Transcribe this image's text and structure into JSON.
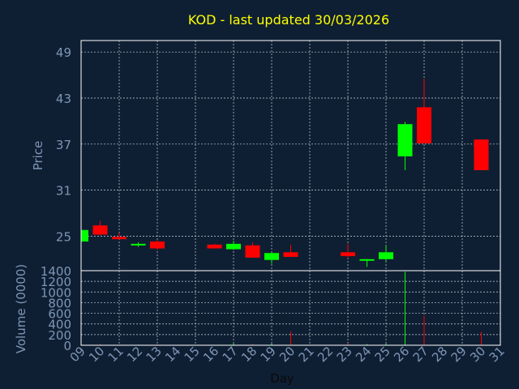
{
  "chart_data": {
    "type": "candlestick",
    "title": "KOD - last updated 30/03/2026",
    "xlabel": "Day",
    "price_panel": {
      "ylabel": "Price",
      "yticks": [
        25,
        31,
        37,
        43,
        49
      ],
      "ylim": [
        20.5,
        50.5
      ]
    },
    "volume_panel": {
      "ylabel": "Volume (0000)",
      "yticks": [
        0,
        200,
        400,
        600,
        800,
        1000,
        1200,
        1400
      ],
      "ylim": [
        0,
        1400
      ]
    },
    "x_ticks": [
      "09",
      "10",
      "11",
      "12",
      "13",
      "14",
      "15",
      "16",
      "17",
      "18",
      "19",
      "20",
      "21",
      "22",
      "23",
      "24",
      "25",
      "26",
      "27",
      "28",
      "29",
      "30",
      "31"
    ],
    "colors": {
      "up": "#00ff00",
      "down": "#ff0000"
    },
    "candles": [
      {
        "day": 9,
        "open": 24.3,
        "high": 25.9,
        "low": 24.1,
        "close": 25.8,
        "volume": 15
      },
      {
        "day": 10,
        "open": 26.4,
        "high": 27.0,
        "low": 25.1,
        "close": 25.2,
        "volume": 20
      },
      {
        "day": 11,
        "open": 24.9,
        "high": 25.4,
        "low": 24.6,
        "close": 24.6,
        "volume": 12
      },
      {
        "day": 12,
        "open": 23.9,
        "high": 24.2,
        "low": 23.6,
        "close": 24.0,
        "volume": 10
      },
      {
        "day": 13,
        "open": 24.3,
        "high": 24.5,
        "low": 23.2,
        "close": 23.4,
        "volume": 14
      },
      {
        "day": 16,
        "open": 23.9,
        "high": 24.0,
        "low": 23.4,
        "close": 23.4,
        "volume": 8
      },
      {
        "day": 17,
        "open": 23.3,
        "high": 24.4,
        "low": 23.2,
        "close": 24.0,
        "volume": 40
      },
      {
        "day": 18,
        "open": 23.8,
        "high": 24.2,
        "low": 22.2,
        "close": 22.2,
        "volume": 25
      },
      {
        "day": 19,
        "open": 21.9,
        "high": 22.9,
        "low": 21.4,
        "close": 22.8,
        "volume": 30
      },
      {
        "day": 20,
        "open": 22.9,
        "high": 23.9,
        "low": 22.3,
        "close": 22.3,
        "volume": 260
      },
      {
        "day": 23,
        "open": 22.9,
        "high": 24.0,
        "low": 22.1,
        "close": 22.4,
        "volume": 35
      },
      {
        "day": 24,
        "open": 21.9,
        "high": 22.0,
        "low": 21.0,
        "close": 22.0,
        "volume": 20
      },
      {
        "day": 25,
        "open": 22.0,
        "high": 23.8,
        "low": 21.7,
        "close": 22.9,
        "volume": 30
      },
      {
        "day": 26,
        "open": 35.4,
        "high": 39.9,
        "low": 33.6,
        "close": 39.6,
        "volume": 1380
      },
      {
        "day": 27,
        "open": 41.8,
        "high": 45.5,
        "low": 37.1,
        "close": 37.1,
        "volume": 560
      },
      {
        "day": 30,
        "open": 37.6,
        "high": 37.6,
        "low": 33.6,
        "close": 33.6,
        "volume": 250
      }
    ]
  }
}
